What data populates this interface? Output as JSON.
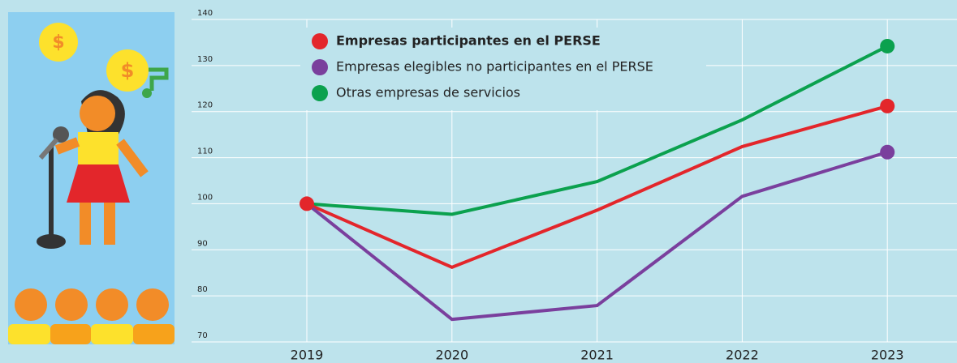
{
  "chart_data": {
    "type": "line",
    "x": [
      "2019",
      "2020",
      "2021",
      "2022",
      "2023"
    ],
    "series": [
      {
        "name": "Empresas participantes en el PERSE",
        "color": "#e3262b",
        "values": [
          100,
          86.2,
          98.6,
          112.4,
          121.2
        ]
      },
      {
        "name": "Empresas elegibles no participantes en el PERSE",
        "color": "#7a3f9d",
        "values": [
          100,
          74.9,
          77.9,
          101.6,
          111.2
        ]
      },
      {
        "name": "Otras empresas de servicios",
        "color": "#0ba14e",
        "values": [
          100,
          97.7,
          104.8,
          118.2,
          134.2
        ]
      }
    ],
    "ylim": [
      70,
      140
    ],
    "yticks": [
      70,
      80,
      90,
      100,
      110,
      120,
      130,
      140
    ],
    "grid": true
  }
}
